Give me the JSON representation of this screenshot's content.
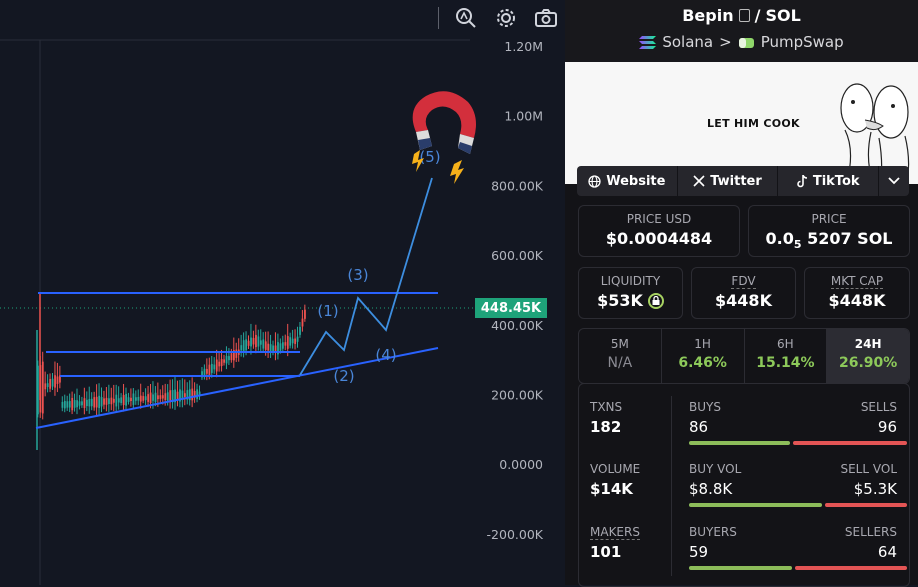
{
  "chart": {
    "y_axis_labels": [
      "1.20M",
      "1.00M",
      "800.00K",
      "600.00K",
      "400.00K",
      "200.00K",
      "0.0000",
      "-200.00K"
    ],
    "current_price_label": "448.45K",
    "wave_labels": [
      "(1)",
      "(2)",
      "(3)",
      "(4)",
      "(5)"
    ],
    "colors": {
      "up": "#26a69a",
      "down": "#ef5350",
      "trendline": "#2962ff",
      "projection": "#3d8ee0",
      "price_tag": "#1ea37a"
    }
  },
  "toolbar": {
    "icons": [
      "crosshair-zoom-icon",
      "gear-icon",
      "camera-icon"
    ]
  },
  "header": {
    "token": "Bepin",
    "separator": "/",
    "quote": "SOL",
    "chain": "Solana",
    "chevron": ">",
    "dex": "PumpSwap"
  },
  "banner": {
    "text": "LET HIM COOK"
  },
  "links": {
    "website": "Website",
    "twitter": "Twitter",
    "tiktok": "TikTok"
  },
  "price": {
    "usd_label": "PRICE USD",
    "usd_value": "$0.0004484",
    "native_label": "PRICE",
    "native_prefix": "0.0",
    "native_zeros": "5",
    "native_suffix": "5207 SOL"
  },
  "metrics": {
    "liquidity_label": "LIQUIDITY",
    "liquidity_value": "$53K",
    "fdv_label": "FDV",
    "fdv_value": "$448K",
    "mktcap_label": "MKT CAP",
    "mktcap_value": "$448K"
  },
  "timeframes": [
    {
      "label": "5M",
      "value": "N/A"
    },
    {
      "label": "1H",
      "value": "6.46%"
    },
    {
      "label": "6H",
      "value": "15.14%"
    },
    {
      "label": "24H",
      "value": "26.90%"
    }
  ],
  "stats": {
    "txns_label": "TXNS",
    "txns_value": "182",
    "buys_label": "BUYS",
    "buys_value": "86",
    "sells_label": "SELLS",
    "sells_value": "96",
    "volume_label": "VOLUME",
    "volume_value": "$14K",
    "buyvol_label": "BUY VOL",
    "buyvol_value": "$8.8K",
    "sellvol_label": "SELL VOL",
    "sellvol_value": "$5.3K",
    "makers_label": "MAKERS",
    "makers_value": "101",
    "buyers_label": "BUYERS",
    "buyers_value": "59",
    "sellers_label": "SELLERS",
    "sellers_value": "64"
  },
  "ratios": {
    "buys": 0.47,
    "buy_vol": 0.62,
    "buyers": 0.48
  }
}
